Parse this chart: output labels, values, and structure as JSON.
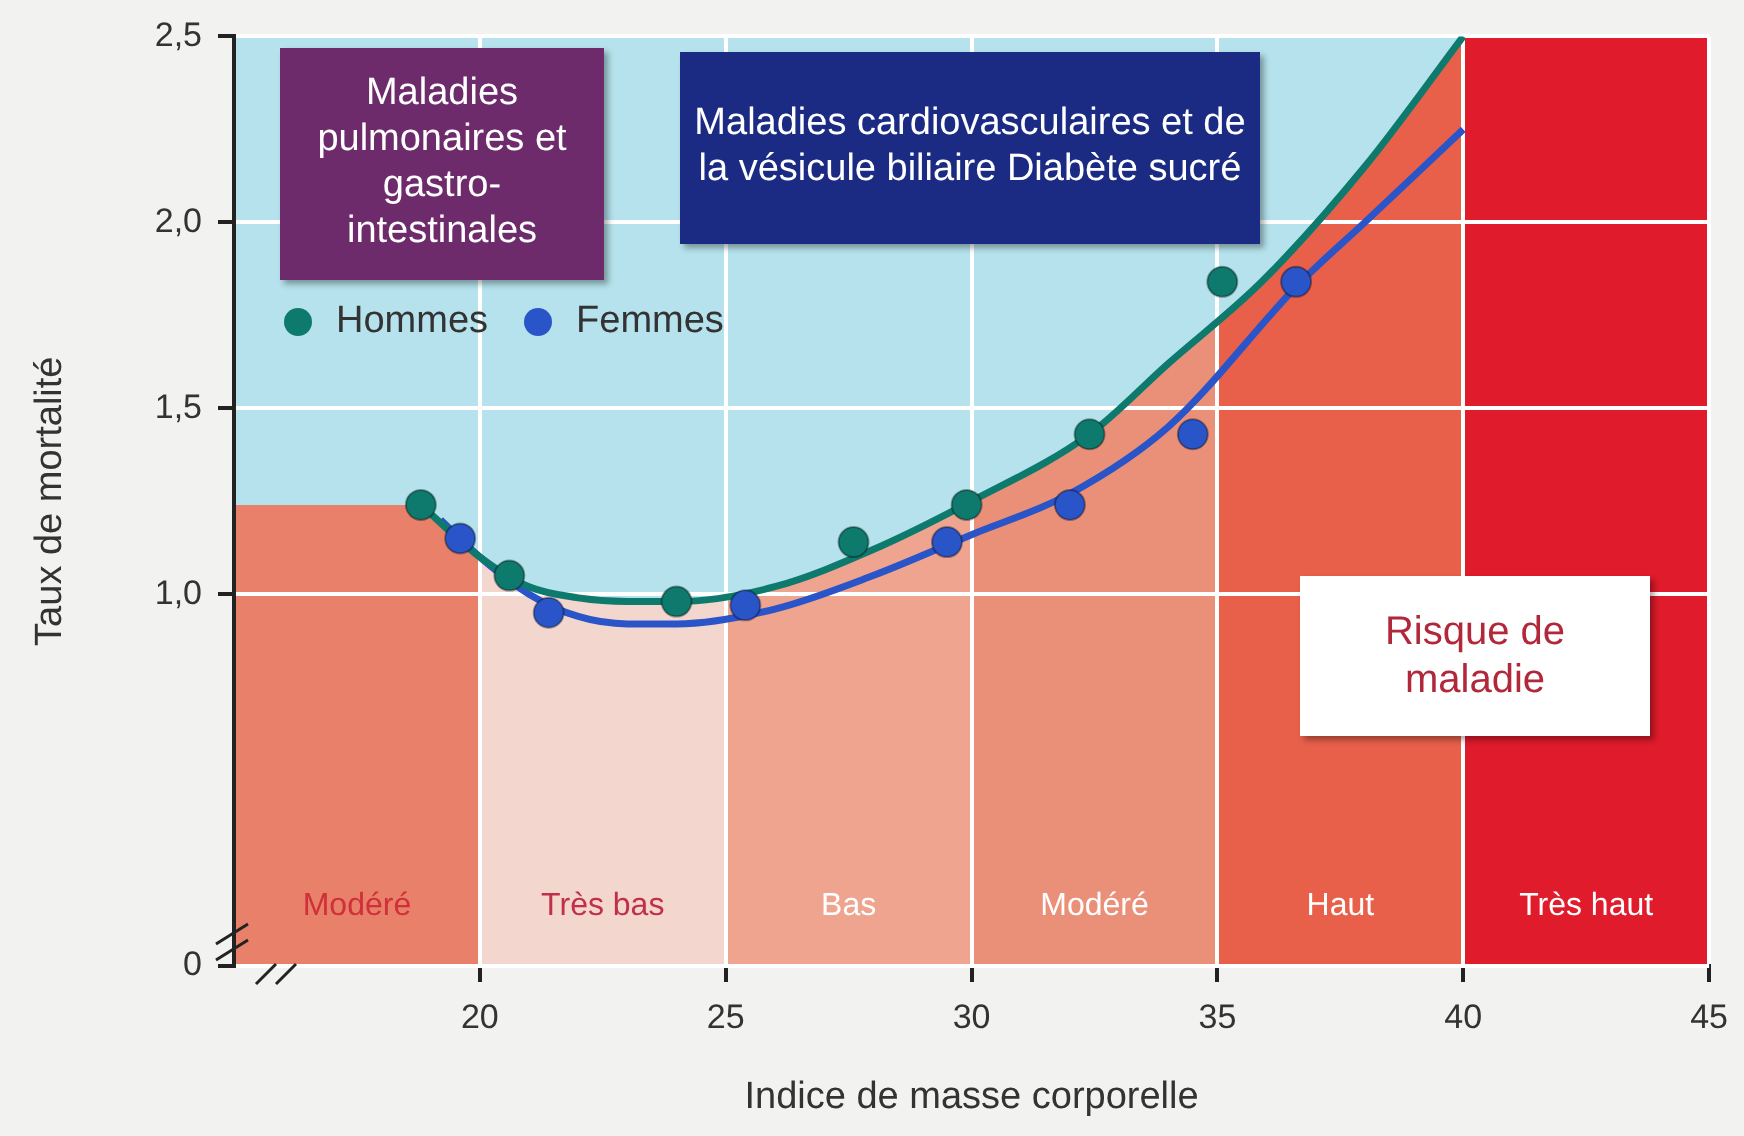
{
  "chart_data": {
    "type": "scatter",
    "xlabel": "Indice de masse corporelle",
    "ylabel": "Taux de mortalité",
    "xlim": [
      15,
      45
    ],
    "xticks": [
      20,
      25,
      30,
      35,
      40,
      45
    ],
    "ylim": [
      0,
      2.5
    ],
    "yticks": [
      0,
      {
        "value": 1,
        "label": "1,0"
      },
      {
        "value": 1.5,
        "label": "1,5"
      },
      {
        "value": 2,
        "label": "2,0"
      },
      {
        "value": 2.5,
        "label": "2,5"
      }
    ],
    "grid": true,
    "legend": "top left",
    "series": [
      {
        "name": "Hommes",
        "marker": "circle",
        "color": "#0e7a6e",
        "x": [
          18.8,
          20.6,
          24.0,
          27.6,
          29.9,
          32.4,
          35.1
        ],
        "values": [
          1.24,
          1.05,
          0.98,
          1.14,
          1.24,
          1.43,
          1.84
        ]
      },
      {
        "name": "Femmes",
        "marker": "circle",
        "color": "#2a55c8",
        "x": [
          19.6,
          21.4,
          25.4,
          29.5,
          32.0,
          34.5,
          36.6
        ],
        "values": [
          1.15,
          0.95,
          0.97,
          1.14,
          1.24,
          1.43,
          1.84
        ]
      },
      {
        "type": "line",
        "color": "#0e7a6e",
        "x": [
          18.8,
          20,
          21,
          22,
          23,
          24,
          26,
          28,
          30,
          32.4,
          34,
          35.9,
          38,
          40
        ],
        "values": [
          1.24,
          1.1,
          1.02,
          0.99,
          0.98,
          0.98,
          1.02,
          1.12,
          1.25,
          1.43,
          1.62,
          1.84,
          2.15,
          2.5
        ]
      },
      {
        "type": "line",
        "color": "#2a55c8",
        "x": [
          19.2,
          20,
          21,
          22,
          23,
          24,
          26,
          28,
          30,
          32,
          34,
          36.7,
          38,
          40
        ],
        "values": [
          1.2,
          1.1,
          1.0,
          0.94,
          0.92,
          0.92,
          0.96,
          1.05,
          1.16,
          1.27,
          1.45,
          1.84,
          2.0,
          2.25
        ]
      }
    ],
    "bands": [
      {
        "axis": "x",
        "from": 15,
        "to": 20,
        "label": "Modéré",
        "color": "#e8806a"
      },
      {
        "axis": "x",
        "from": 20,
        "to": 25,
        "label": "Très bas",
        "color": "#f3d6ce"
      },
      {
        "axis": "x",
        "from": 25,
        "to": 30,
        "label": "Bas",
        "color": "#eea48f"
      },
      {
        "axis": "x",
        "from": 30,
        "to": 35,
        "label": "Modéré",
        "color": "#eb9078"
      },
      {
        "axis": "x",
        "from": 35,
        "to": 40,
        "label": "Haut",
        "color": "#e8604a"
      },
      {
        "axis": "x",
        "from": 40,
        "to": 45,
        "label": "Très haut",
        "color": "#e01b2b"
      }
    ],
    "annotations": [
      "Maladies pulmonaires et gastro-intestinales",
      "Maladies cardiovasculaires et de la vésicule biliaire Diabète sucré",
      "Risque de maladie"
    ]
  }
}
